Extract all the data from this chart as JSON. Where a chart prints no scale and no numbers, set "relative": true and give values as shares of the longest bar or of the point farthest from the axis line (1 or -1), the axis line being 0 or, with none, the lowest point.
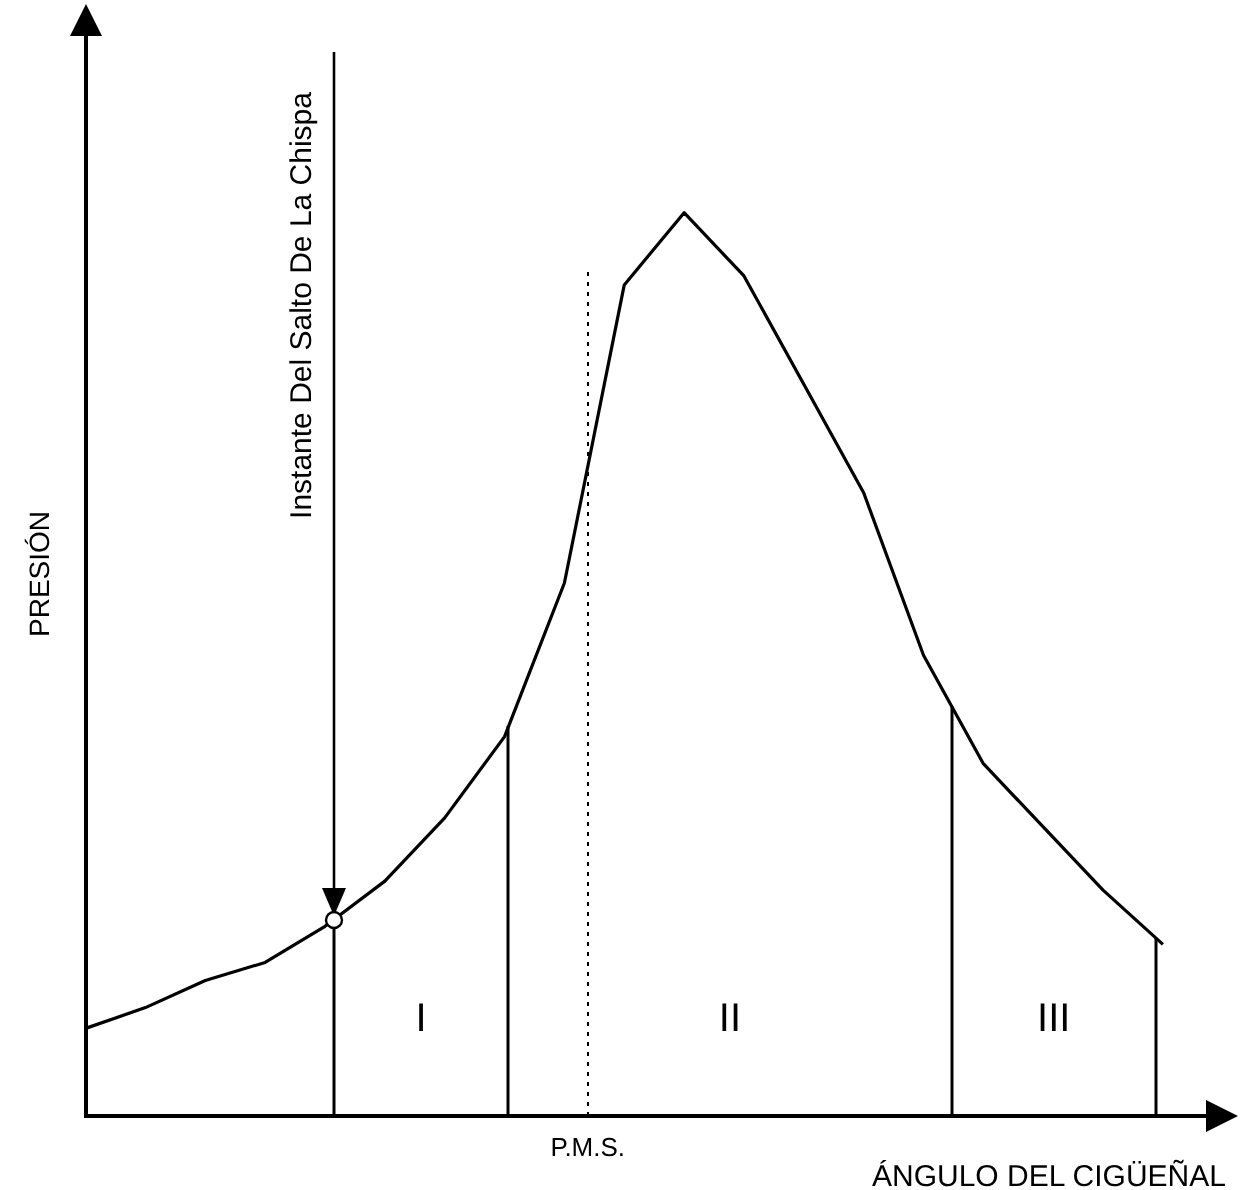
{
  "chart_data": {
    "type": "line",
    "relative": true,
    "xlabel": "ÁNGULO DEL CIGÜEÑAL",
    "ylabel": "PRESIÓN",
    "categories": [
      null,
      null,
      null,
      null,
      null,
      null,
      null,
      null,
      null,
      null,
      null,
      null,
      null,
      null,
      null,
      null,
      null,
      null,
      null
    ],
    "series": [
      {
        "color": "#000000",
        "values": [
          0.097,
          0.12,
          0.15,
          0.17,
          0.21,
          0.26,
          0.33,
          0.42,
          0.59,
          0.92,
          1,
          0.93,
          0.81,
          0.69,
          0.51,
          0.39,
          0.32,
          0.25,
          0.19
        ]
      }
    ],
    "annotations": [
      "Instante Del Salto De La Chispa",
      "I",
      "II",
      "III",
      "P.M.S."
    ],
    "marker": "none",
    "line_style": "solid",
    "grid": false,
    "legend": false
  }
}
